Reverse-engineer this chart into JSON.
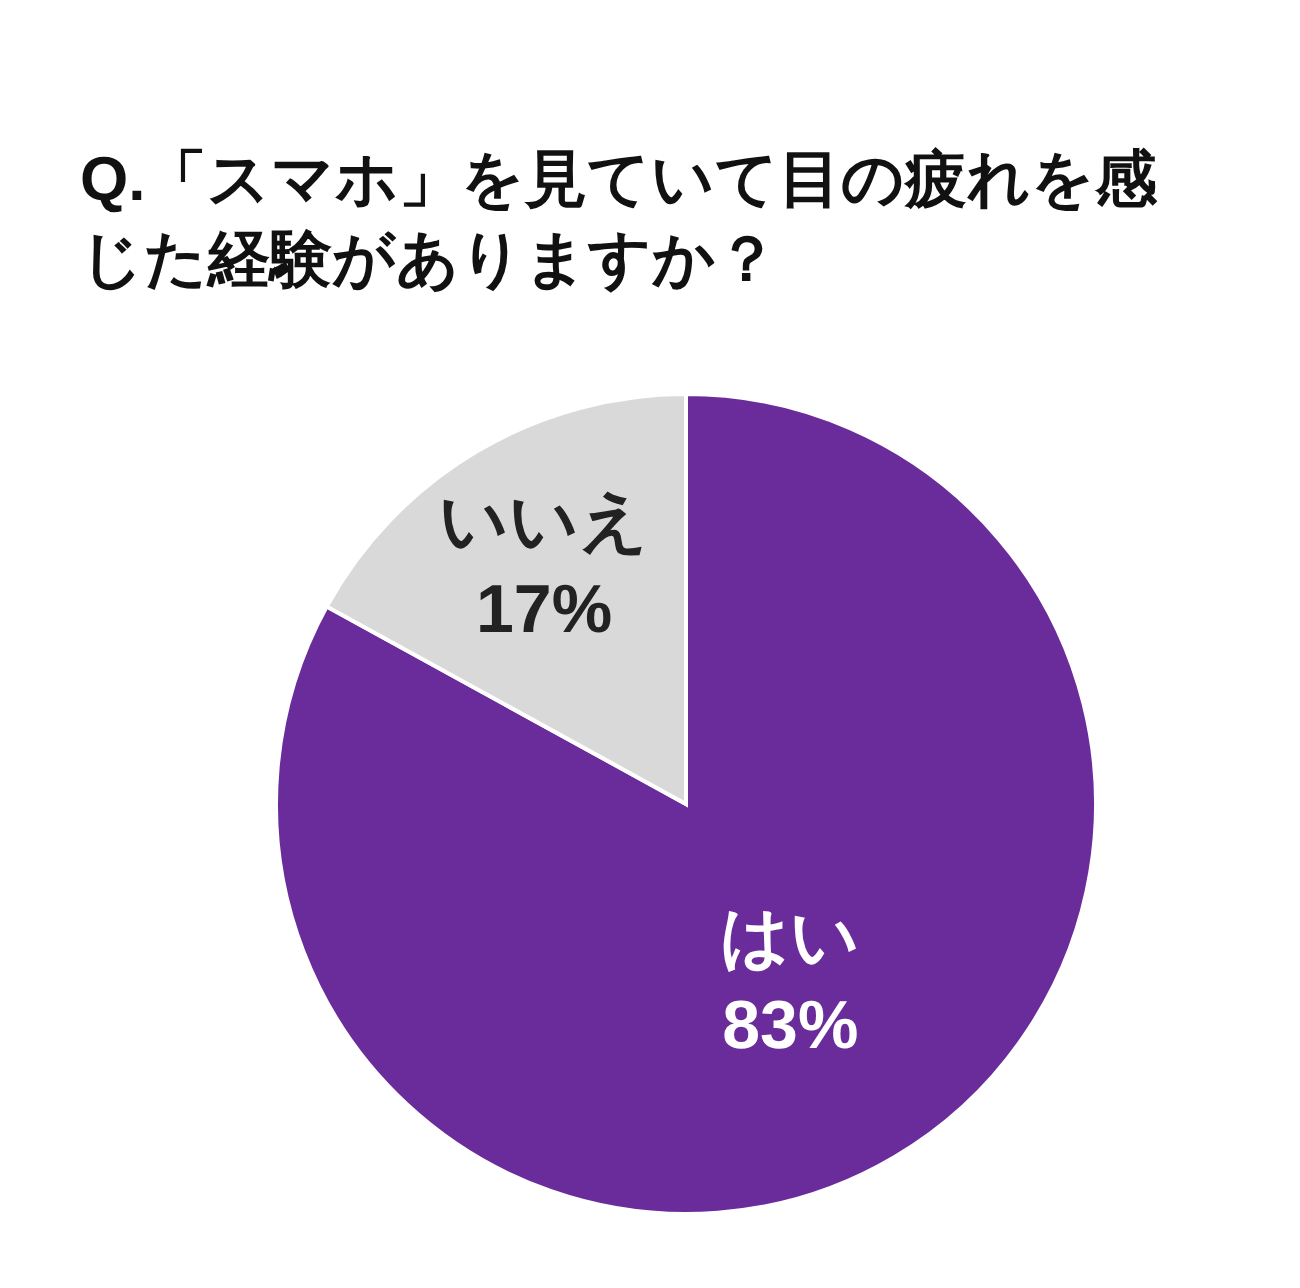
{
  "chart_data": {
    "type": "pie",
    "title": "Q.「スマホ」を見ていて目の疲れを感じた経験がありますか？",
    "categories": [
      "はい",
      "いいえ"
    ],
    "values": [
      83,
      17
    ],
    "colors": [
      "#6a2c9b",
      "#d9d9d9"
    ],
    "value_labels": [
      "83%",
      "17%"
    ]
  }
}
